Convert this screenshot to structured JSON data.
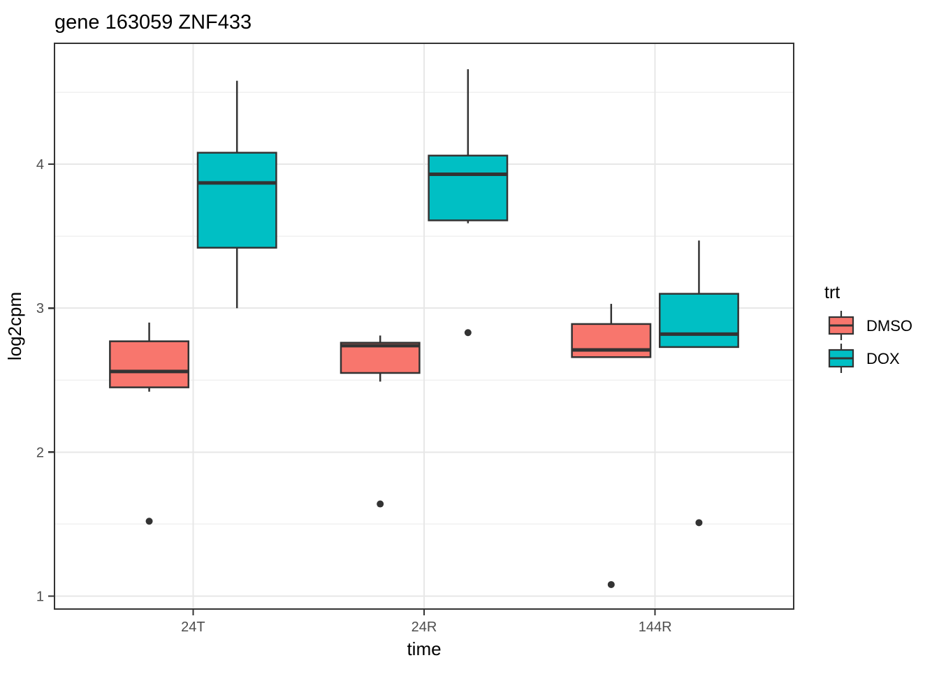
{
  "chart_data": {
    "type": "boxplot",
    "title": "gene 163059 ZNF433",
    "xlabel": "time",
    "ylabel": "log2cpm",
    "categories": [
      "24T",
      "24R",
      "144R"
    ],
    "y_ticks": [
      1,
      2,
      3,
      4
    ],
    "y_minor_ticks": [
      1.5,
      2.5,
      3.5,
      4.5
    ],
    "ylim": [
      0.91,
      4.84
    ],
    "x_domain": [
      0.4,
      3.6
    ],
    "grid": true,
    "legend_position": "right",
    "legend_title": "trt",
    "dodge_offset": 0.19,
    "box_width": 0.34,
    "series": [
      {
        "name": "DMSO",
        "color": "#F8766D",
        "boxes": [
          {
            "category": "24T",
            "whisker_low": 2.42,
            "q1": 2.45,
            "median": 2.56,
            "q3": 2.77,
            "whisker_high": 2.9,
            "outliers": [
              1.52
            ]
          },
          {
            "category": "24R",
            "whisker_low": 2.49,
            "q1": 2.55,
            "median": 2.74,
            "q3": 2.76,
            "whisker_high": 2.81,
            "outliers": [
              1.64
            ]
          },
          {
            "category": "144R",
            "whisker_low": 2.66,
            "q1": 2.66,
            "median": 2.71,
            "q3": 2.89,
            "whisker_high": 3.03,
            "outliers": [
              1.08
            ]
          }
        ]
      },
      {
        "name": "DOX",
        "color": "#00BFC4",
        "boxes": [
          {
            "category": "24T",
            "whisker_low": 3.0,
            "q1": 3.42,
            "median": 3.87,
            "q3": 4.08,
            "whisker_high": 4.58,
            "outliers": []
          },
          {
            "category": "24R",
            "whisker_low": 3.59,
            "q1": 3.61,
            "median": 3.93,
            "q3": 4.06,
            "whisker_high": 4.66,
            "outliers": [
              2.83
            ]
          },
          {
            "category": "144R",
            "whisker_low": 2.73,
            "q1": 2.73,
            "median": 2.82,
            "q3": 3.1,
            "whisker_high": 3.47,
            "outliers": [
              1.51
            ]
          }
        ]
      }
    ],
    "colors": {
      "box_border": "#333333",
      "median_line": "#333333",
      "outlier": "#333333",
      "panel_border": "#333333",
      "panel_background": "#ffffff",
      "grid_major": "#e7e7e7",
      "grid_minor": "#f0f0f0",
      "axis_text": "#4d4d4d",
      "tick_mark": "#333333"
    }
  }
}
